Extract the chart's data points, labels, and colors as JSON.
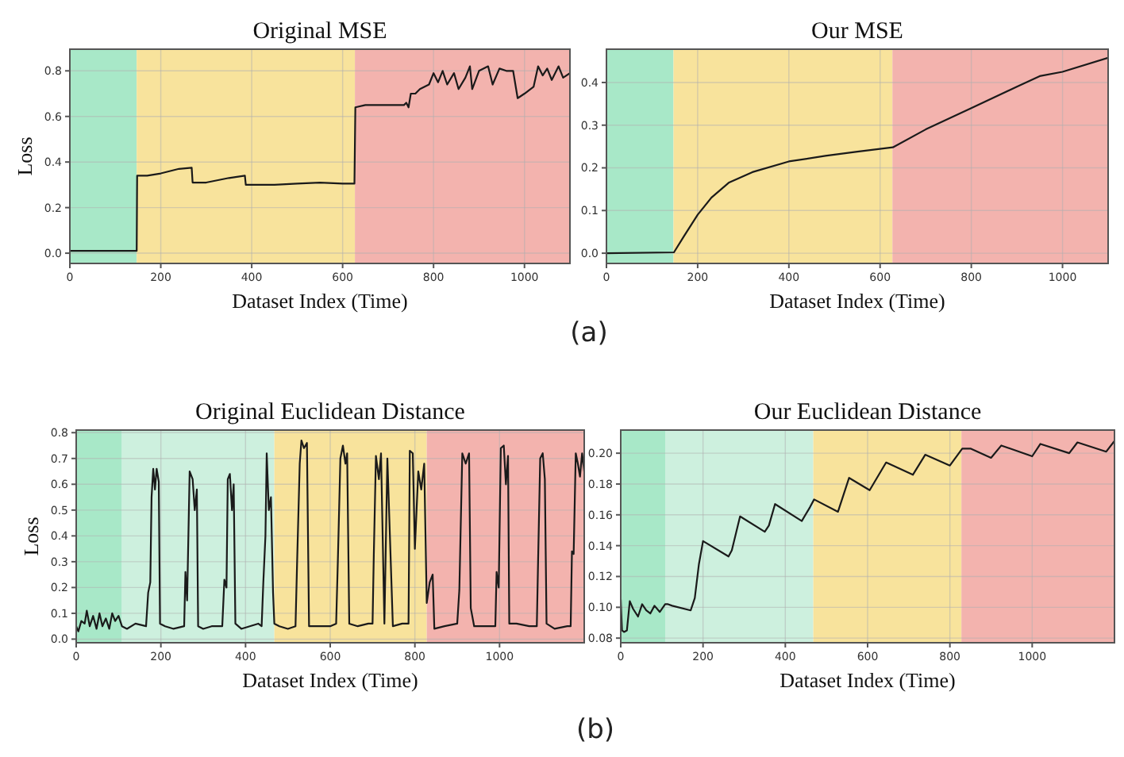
{
  "chart_data": [
    {
      "type": "line",
      "title": "Original MSE",
      "xlabel": "Dataset Index (Time)",
      "ylabel": "Loss",
      "annotations": [
        "(a)"
      ],
      "xlim": [
        0,
        1100
      ],
      "ylim": [
        -0.045,
        0.895
      ],
      "xticks": [
        0,
        200,
        400,
        600,
        800,
        1000
      ],
      "yticks": [
        {
          "value": 0,
          "label": "0.0"
        },
        0.2,
        0.4,
        0.6,
        0.8
      ],
      "grid": true,
      "bands": [
        {
          "axis": "x",
          "from": 0,
          "to": 147,
          "color": "#a8e8c8"
        },
        {
          "axis": "x",
          "from": 147,
          "to": 627,
          "color": "#f8e39c"
        },
        {
          "axis": "x",
          "from": 627,
          "to": 1100,
          "color": "#f3b3ae"
        }
      ],
      "series": [
        {
          "color": "#1a1a1a",
          "x": [
            0,
            147,
            148,
            170,
            200,
            240,
            268,
            270,
            300,
            350,
            385,
            387,
            450,
            500,
            550,
            600,
            626,
            628,
            650,
            700,
            735,
            740,
            745,
            750,
            760,
            770,
            790,
            800,
            810,
            820,
            830,
            845,
            855,
            870,
            880,
            885,
            900,
            920,
            930,
            945,
            960,
            975,
            985,
            1000,
            1020,
            1030,
            1040,
            1050,
            1060,
            1075,
            1085,
            1100
          ],
          "values": [
            0.01,
            0.01,
            0.34,
            0.34,
            0.35,
            0.37,
            0.375,
            0.31,
            0.31,
            0.33,
            0.34,
            0.3,
            0.3,
            0.305,
            0.31,
            0.305,
            0.305,
            0.64,
            0.65,
            0.65,
            0.65,
            0.66,
            0.64,
            0.7,
            0.7,
            0.72,
            0.74,
            0.79,
            0.75,
            0.8,
            0.74,
            0.79,
            0.72,
            0.77,
            0.82,
            0.72,
            0.8,
            0.82,
            0.74,
            0.81,
            0.8,
            0.8,
            0.68,
            0.7,
            0.73,
            0.82,
            0.78,
            0.81,
            0.76,
            0.82,
            0.77,
            0.79
          ]
        }
      ]
    },
    {
      "type": "line",
      "title": "Our MSE",
      "xlabel": "Dataset Index (Time)",
      "xlim": [
        0,
        1100
      ],
      "ylim": [
        -0.024,
        0.478
      ],
      "xticks": [
        0,
        200,
        400,
        600,
        800,
        1000
      ],
      "yticks": [
        {
          "value": 0,
          "label": "0.0"
        },
        0.1,
        0.2,
        0.3,
        0.4
      ],
      "grid": true,
      "bands": [
        {
          "axis": "x",
          "from": 0,
          "to": 147,
          "color": "#a8e8c8"
        },
        {
          "axis": "x",
          "from": 147,
          "to": 627,
          "color": "#f8e39c"
        },
        {
          "axis": "x",
          "from": 627,
          "to": 1100,
          "color": "#f3b3ae"
        }
      ],
      "series": [
        {
          "color": "#1a1a1a",
          "x": [
            0,
            148,
            170,
            200,
            230,
            268,
            320,
            400,
            480,
            550,
            628,
            700,
            800,
            900,
            950,
            1000,
            1100
          ],
          "values": [
            0,
            0.002,
            0.04,
            0.09,
            0.13,
            0.165,
            0.19,
            0.215,
            0.228,
            0.238,
            0.248,
            0.29,
            0.34,
            0.39,
            0.415,
            0.425,
            0.458
          ]
        }
      ]
    },
    {
      "type": "line",
      "title": "Original Euclidean Distance",
      "xlabel": "Dataset Index (Time)",
      "ylabel": "Loss",
      "annotations": [
        "(b)"
      ],
      "xlim": [
        0,
        1200
      ],
      "ylim": [
        -0.014,
        0.81
      ],
      "xticks": [
        0,
        200,
        400,
        600,
        800,
        1000
      ],
      "yticks": [
        {
          "value": 0,
          "label": "0.0"
        },
        0.1,
        0.2,
        0.3,
        0.4,
        0.5,
        0.6,
        0.7,
        0.8
      ],
      "grid": true,
      "bands": [
        {
          "axis": "x",
          "from": 0,
          "to": 108,
          "color": "#a8e8c8"
        },
        {
          "axis": "x",
          "from": 108,
          "to": 468,
          "color": "#cdf0de"
        },
        {
          "axis": "x",
          "from": 468,
          "to": 828,
          "color": "#f8e39c"
        },
        {
          "axis": "x",
          "from": 828,
          "to": 1200,
          "color": "#f3b3ae"
        }
      ],
      "series": [
        {
          "color": "#1a1a1a",
          "x": [
            0,
            5,
            12,
            20,
            25,
            32,
            40,
            48,
            55,
            62,
            70,
            78,
            85,
            92,
            100,
            108,
            120,
            140,
            165,
            170,
            175,
            178,
            182,
            186,
            190,
            195,
            198,
            210,
            230,
            255,
            258,
            262,
            268,
            275,
            280,
            285,
            288,
            300,
            320,
            345,
            350,
            355,
            358,
            363,
            368,
            372,
            376,
            390,
            410,
            430,
            438,
            442,
            447,
            450,
            455,
            460,
            465,
            468,
            480,
            500,
            518,
            522,
            528,
            532,
            538,
            545,
            550,
            570,
            600,
            614,
            618,
            624,
            630,
            636,
            640,
            645,
            665,
            690,
            700,
            703,
            708,
            715,
            720,
            728,
            735,
            742,
            748,
            770,
            785,
            788,
            795,
            800,
            808,
            815,
            822,
            828,
            835,
            842,
            846,
            870,
            900,
            905,
            912,
            920,
            928,
            932,
            940,
            965,
            990,
            993,
            998,
            1003,
            1010,
            1015,
            1020,
            1023,
            1040,
            1070,
            1088,
            1091,
            1096,
            1102,
            1107,
            1111,
            1130,
            1160,
            1168,
            1171,
            1175,
            1180,
            1185,
            1190,
            1195,
            1200
          ],
          "values": [
            0.05,
            0.03,
            0.07,
            0.06,
            0.11,
            0.05,
            0.09,
            0.04,
            0.1,
            0.05,
            0.08,
            0.04,
            0.1,
            0.07,
            0.09,
            0.05,
            0.04,
            0.06,
            0.05,
            0.18,
            0.22,
            0.55,
            0.66,
            0.58,
            0.66,
            0.61,
            0.06,
            0.05,
            0.04,
            0.05,
            0.26,
            0.15,
            0.65,
            0.62,
            0.5,
            0.58,
            0.05,
            0.04,
            0.05,
            0.05,
            0.23,
            0.2,
            0.62,
            0.64,
            0.5,
            0.6,
            0.06,
            0.04,
            0.05,
            0.06,
            0.05,
            0.22,
            0.4,
            0.72,
            0.5,
            0.55,
            0.18,
            0.06,
            0.05,
            0.04,
            0.05,
            0.31,
            0.68,
            0.77,
            0.74,
            0.76,
            0.05,
            0.05,
            0.05,
            0.06,
            0.3,
            0.7,
            0.75,
            0.68,
            0.72,
            0.06,
            0.05,
            0.06,
            0.06,
            0.33,
            0.71,
            0.62,
            0.72,
            0.06,
            0.7,
            0.35,
            0.05,
            0.06,
            0.06,
            0.73,
            0.72,
            0.35,
            0.65,
            0.58,
            0.68,
            0.14,
            0.22,
            0.25,
            0.04,
            0.05,
            0.06,
            0.19,
            0.72,
            0.68,
            0.72,
            0.12,
            0.05,
            0.05,
            0.05,
            0.26,
            0.2,
            0.74,
            0.75,
            0.6,
            0.71,
            0.06,
            0.06,
            0.05,
            0.05,
            0.3,
            0.7,
            0.72,
            0.62,
            0.06,
            0.04,
            0.05,
            0.05,
            0.34,
            0.33,
            0.72,
            0.68,
            0.63,
            0.72,
            0.65
          ]
        }
      ]
    },
    {
      "type": "line",
      "title": "Our Euclidean Distance",
      "xlabel": "Dataset Index (Time)",
      "xlim": [
        0,
        1200
      ],
      "ylim": [
        0.077,
        0.215
      ],
      "xticks": [
        0,
        200,
        400,
        600,
        800,
        1000
      ],
      "yticks": [
        {
          "value": 0.08,
          "label": "0.08"
        },
        {
          "value": 0.1,
          "label": "0.10"
        },
        {
          "value": 0.12,
          "label": "0.12"
        },
        {
          "value": 0.14,
          "label": "0.14"
        },
        {
          "value": 0.16,
          "label": "0.16"
        },
        {
          "value": 0.18,
          "label": "0.18"
        },
        {
          "value": 0.2,
          "label": "0.20"
        }
      ],
      "grid": true,
      "bands": [
        {
          "axis": "x",
          "from": 0,
          "to": 108,
          "color": "#a8e8c8"
        },
        {
          "axis": "x",
          "from": 108,
          "to": 468,
          "color": "#cdf0de"
        },
        {
          "axis": "x",
          "from": 468,
          "to": 828,
          "color": "#f8e39c"
        },
        {
          "axis": "x",
          "from": 828,
          "to": 1200,
          "color": "#f3b3ae"
        }
      ],
      "series": [
        {
          "color": "#1a1a1a",
          "x": [
            0,
            3,
            8,
            15,
            22,
            30,
            42,
            52,
            62,
            72,
            82,
            95,
            108,
            115,
            125,
            170,
            180,
            190,
            200,
            262,
            270,
            290,
            350,
            360,
            375,
            440,
            460,
            470,
            528,
            555,
            605,
            645,
            710,
            740,
            800,
            830,
            850,
            900,
            925,
            1000,
            1020,
            1090,
            1110,
            1180,
            1200
          ],
          "values": [
            0.105,
            0.085,
            0.084,
            0.085,
            0.104,
            0.099,
            0.094,
            0.102,
            0.098,
            0.096,
            0.101,
            0.097,
            0.102,
            0.102,
            0.101,
            0.098,
            0.106,
            0.128,
            0.143,
            0.133,
            0.137,
            0.159,
            0.149,
            0.153,
            0.167,
            0.156,
            0.165,
            0.17,
            0.162,
            0.184,
            0.176,
            0.194,
            0.186,
            0.199,
            0.192,
            0.203,
            0.203,
            0.197,
            0.205,
            0.198,
            0.206,
            0.2,
            0.207,
            0.201,
            0.208
          ]
        }
      ]
    }
  ]
}
